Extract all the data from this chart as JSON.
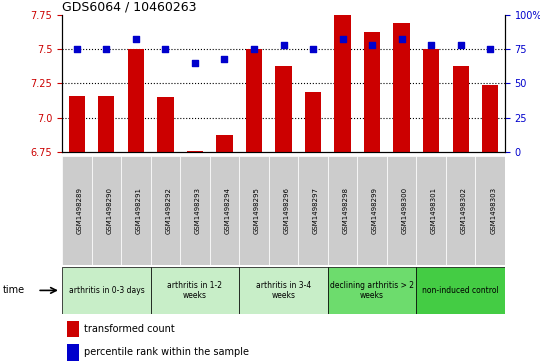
{
  "title": "GDS6064 / 10460263",
  "samples": [
    "GSM1498289",
    "GSM1498290",
    "GSM1498291",
    "GSM1498292",
    "GSM1498293",
    "GSM1498294",
    "GSM1498295",
    "GSM1498296",
    "GSM1498297",
    "GSM1498298",
    "GSM1498299",
    "GSM1498300",
    "GSM1498301",
    "GSM1498302",
    "GSM1498303"
  ],
  "bar_values": [
    7.16,
    7.16,
    7.5,
    7.15,
    6.76,
    6.88,
    7.5,
    7.38,
    7.19,
    7.75,
    7.62,
    7.69,
    7.5,
    7.38,
    7.24
  ],
  "dot_values": [
    75,
    75,
    82,
    75,
    65,
    68,
    75,
    78,
    75,
    82,
    78,
    82,
    78,
    78,
    75
  ],
  "ylim_left": [
    6.75,
    7.75
  ],
  "ylim_right": [
    0,
    100
  ],
  "yticks_left": [
    6.75,
    7.0,
    7.25,
    7.5,
    7.75
  ],
  "yticks_right": [
    0,
    25,
    50,
    75,
    100
  ],
  "bar_color": "#cc0000",
  "dot_color": "#0000cc",
  "bar_bottom": 6.75,
  "groups": [
    {
      "label": "arthritis in 0-3 days",
      "start": 0,
      "end": 3,
      "color": "#c8eec8"
    },
    {
      "label": "arthritis in 1-2\nweeks",
      "start": 3,
      "end": 6,
      "color": "#c8eec8"
    },
    {
      "label": "arthritis in 3-4\nweeks",
      "start": 6,
      "end": 9,
      "color": "#c8eec8"
    },
    {
      "label": "declining arthritis > 2\nweeks",
      "start": 9,
      "end": 12,
      "color": "#6ddc6d"
    },
    {
      "label": "non-induced control",
      "start": 12,
      "end": 15,
      "color": "#44cc44"
    }
  ],
  "dotted_line_values": [
    7.5,
    7.25,
    7.0
  ],
  "legend_bar_label": "transformed count",
  "legend_dot_label": "percentile rank within the sample",
  "sample_box_color": "#cccccc",
  "right_axis_label_100": "100%"
}
